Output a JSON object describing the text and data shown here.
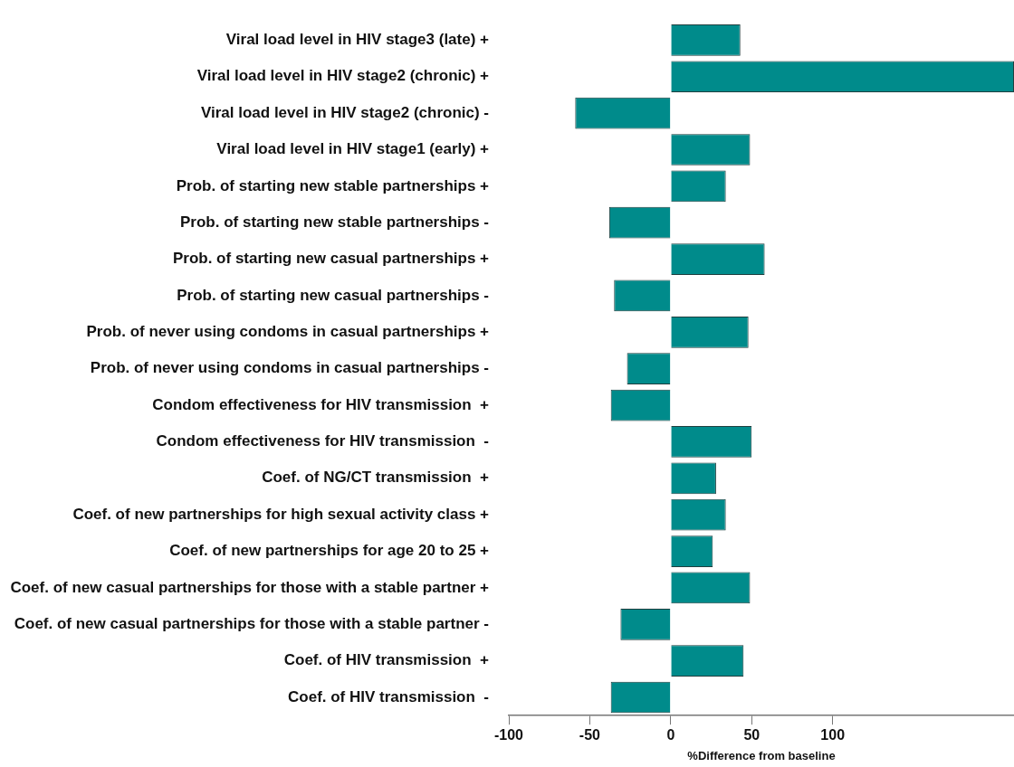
{
  "chart_data": {
    "type": "bar",
    "orientation": "horizontal",
    "xlabel": "%Difference from baseline",
    "categories": [
      "Viral load level in HIV stage3 (late) +",
      "Viral load level in HIV stage2 (chronic) +",
      "Viral load level in HIV stage2 (chronic) -",
      "Viral load level in HIV stage1 (early) +",
      "Prob. of starting new stable partnerships +",
      "Prob. of starting new stable partnerships -",
      "Prob. of starting new casual partnerships +",
      "Prob. of starting new casual partnerships -",
      "Prob. of never using condoms in casual partnerships +",
      "Prob. of never using condoms in casual partnerships -",
      "Condom effectiveness for HIV transmission  +",
      "Condom effectiveness for HIV transmission  -",
      "Coef. of NG/CT transmission  +",
      "Coef. of new partnerships for high sexual activity class +",
      "Coef. of new partnerships for age 20 to 25 +",
      "Coef. of new casual partnerships for those with a stable partner +",
      "Coef. of new casual partnerships for those with a stable partner -",
      "Coef. of HIV transmission  +",
      "Coef. of HIV transmission  -"
    ],
    "values": [
      43,
      212,
      -59,
      49,
      34,
      -38,
      58,
      -35,
      48,
      -27,
      -37,
      50,
      28,
      34,
      26,
      49,
      -31,
      45,
      -37
    ],
    "color": "#008b8b",
    "xlim": [
      -100,
      212
    ],
    "xticks": [
      -100,
      -50,
      0,
      50,
      100
    ],
    "grid": false
  }
}
